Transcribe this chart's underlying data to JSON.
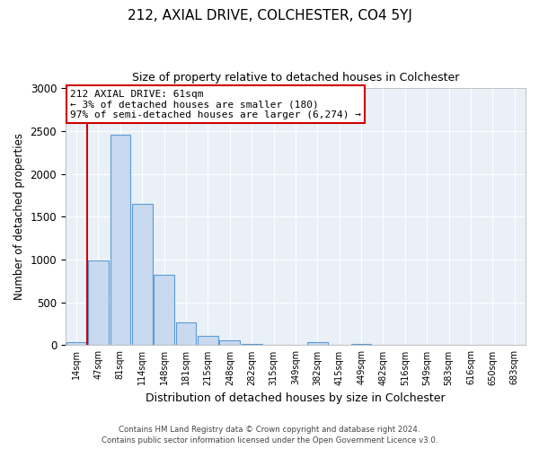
{
  "title1": "212, AXIAL DRIVE, COLCHESTER, CO4 5YJ",
  "title2": "Size of property relative to detached houses in Colchester",
  "xlabel": "Distribution of detached houses by size in Colchester",
  "ylabel": "Number of detached properties",
  "bin_labels": [
    "14sqm",
    "47sqm",
    "81sqm",
    "114sqm",
    "148sqm",
    "181sqm",
    "215sqm",
    "248sqm",
    "282sqm",
    "315sqm",
    "349sqm",
    "382sqm",
    "415sqm",
    "449sqm",
    "482sqm",
    "516sqm",
    "549sqm",
    "583sqm",
    "616sqm",
    "650sqm",
    "683sqm"
  ],
  "bar_heights": [
    40,
    990,
    2460,
    1650,
    820,
    265,
    110,
    55,
    10,
    0,
    0,
    35,
    0,
    15,
    0,
    0,
    0,
    0,
    0,
    0,
    0
  ],
  "bar_color": "#c9d9f0",
  "bar_edge_color": "#5b9bd5",
  "vline_x": 0.5,
  "vline_color": "#cc0000",
  "annotation_title": "212 AXIAL DRIVE: 61sqm",
  "annotation_line1": "← 3% of detached houses are smaller (180)",
  "annotation_line2": "97% of semi-detached houses are larger (6,274) →",
  "annotation_box_color": "#ffffff",
  "annotation_box_edge": "#cc0000",
  "ylim": [
    0,
    3000
  ],
  "footer1": "Contains HM Land Registry data © Crown copyright and database right 2024.",
  "footer2": "Contains public sector information licensed under the Open Government Licence v3.0."
}
